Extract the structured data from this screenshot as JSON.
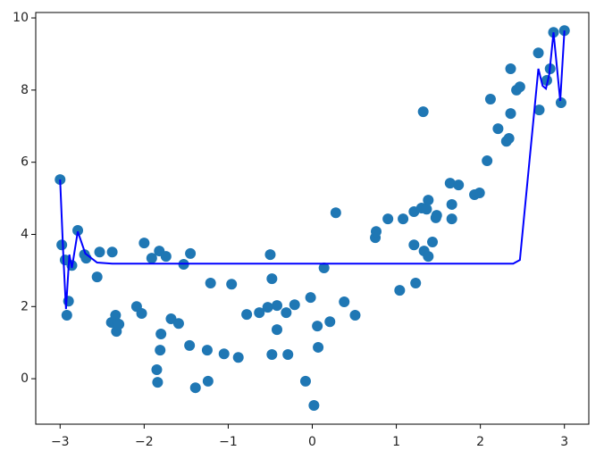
{
  "chart_data": {
    "type": "scatter",
    "xlim": [
      -3.29,
      3.29
    ],
    "ylim": [
      -1.26,
      10.15
    ],
    "xticks": [
      {
        "value": -3,
        "label": "−3"
      },
      {
        "value": -2,
        "label": "−2"
      },
      {
        "value": -1,
        "label": "−1"
      },
      0,
      1,
      2,
      3
    ],
    "yticks": [
      0,
      2,
      4,
      6,
      8,
      10
    ],
    "series": [
      {
        "type": "scatter",
        "color": "#1f77b4",
        "x": [
          -3.0,
          -2.98,
          -2.94,
          -2.9,
          -2.92,
          -2.86,
          -2.79,
          -2.71,
          -2.69,
          -2.56,
          -2.53,
          -2.38,
          -2.39,
          -2.34,
          -2.32,
          -2.33,
          -2.3,
          -2.09,
          -2.03,
          -2.0,
          -1.91,
          -1.82,
          -1.74,
          -1.85,
          -1.84,
          -1.81,
          -1.8,
          -1.68,
          -1.59,
          -1.53,
          -1.45,
          -1.46,
          -1.39,
          -1.25,
          -1.24,
          -1.21,
          -1.05,
          -0.96,
          -0.88,
          -0.78,
          -0.63,
          -0.53,
          -0.5,
          -0.48,
          -0.48,
          -0.42,
          -0.42,
          -0.31,
          -0.29,
          -0.21,
          -0.08,
          -0.02,
          0.02,
          0.06,
          0.07,
          0.14,
          0.21,
          0.28,
          0.38,
          0.51,
          0.75,
          0.76,
          0.9,
          1.04,
          1.08,
          1.21,
          1.21,
          1.23,
          1.3,
          1.32,
          1.33,
          1.36,
          1.38,
          1.38,
          1.43,
          1.47,
          1.48,
          1.64,
          1.66,
          1.66,
          1.74,
          1.93,
          1.99,
          2.08,
          2.12,
          2.21,
          2.31,
          2.34,
          2.36,
          2.36,
          2.43,
          2.47,
          2.69,
          2.7,
          2.79,
          2.83,
          2.87,
          2.96,
          3.0
        ],
        "values": [
          5.52,
          3.71,
          3.29,
          2.15,
          1.76,
          3.14,
          4.11,
          3.44,
          3.34,
          2.82,
          3.51,
          3.51,
          1.56,
          1.76,
          1.53,
          1.31,
          1.51,
          2.0,
          1.81,
          3.76,
          3.34,
          3.54,
          3.39,
          0.25,
          -0.1,
          0.79,
          1.24,
          1.66,
          1.53,
          3.17,
          3.47,
          0.92,
          -0.25,
          0.79,
          -0.07,
          2.65,
          0.69,
          2.62,
          0.59,
          1.78,
          1.83,
          1.98,
          3.44,
          2.77,
          0.67,
          2.03,
          1.36,
          1.83,
          0.67,
          2.05,
          -0.07,
          2.25,
          -0.74,
          1.46,
          0.87,
          3.07,
          1.58,
          4.6,
          2.13,
          1.76,
          3.91,
          4.08,
          4.43,
          2.45,
          4.43,
          4.63,
          3.71,
          2.65,
          4.73,
          7.4,
          3.54,
          4.7,
          4.95,
          3.39,
          3.79,
          4.46,
          4.53,
          5.42,
          4.83,
          4.43,
          5.37,
          5.1,
          5.15,
          6.04,
          7.75,
          6.93,
          6.58,
          6.66,
          7.35,
          8.59,
          8.0,
          8.09,
          9.03,
          7.45,
          8.27,
          8.59,
          9.6,
          7.65,
          9.65
        ]
      },
      {
        "type": "line",
        "color": "#0000ff",
        "x": [
          -3.0,
          -2.96,
          -2.93,
          -2.89,
          -2.86,
          -2.79,
          -2.7,
          -2.56,
          -2.38,
          0.54,
          2.39,
          2.47,
          2.69,
          2.74,
          2.78,
          2.82,
          2.87,
          2.95,
          3.0
        ],
        "values": [
          5.52,
          3.32,
          1.93,
          3.44,
          3.07,
          4.08,
          3.47,
          3.22,
          3.19,
          3.19,
          3.19,
          3.29,
          8.59,
          8.12,
          8.04,
          8.44,
          9.6,
          7.7,
          9.65
        ]
      }
    ]
  }
}
